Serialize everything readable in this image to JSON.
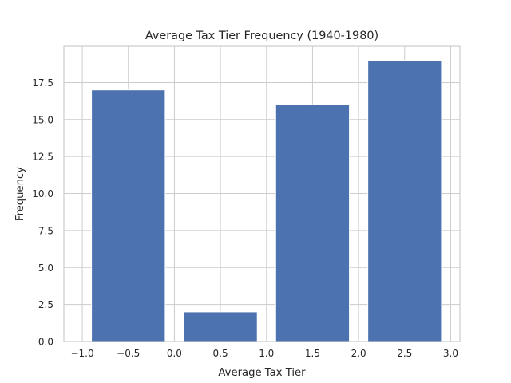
{
  "chart_data": {
    "type": "bar",
    "title": "Average Tax Tier Frequency (1940-1980)",
    "xlabel": "Average Tax Tier",
    "ylabel": "Frequency",
    "bars": [
      {
        "x": -0.5,
        "value": 17
      },
      {
        "x": 0.5,
        "value": 2
      },
      {
        "x": 1.5,
        "value": 16
      },
      {
        "x": 2.5,
        "value": 19
      }
    ],
    "bar_width": 0.8,
    "xlim": [
      -1.2,
      3.1
    ],
    "ylim": [
      0,
      19.95
    ],
    "xticks": [
      -1.0,
      -0.5,
      0.0,
      0.5,
      1.0,
      1.5,
      2.0,
      2.5,
      3.0
    ],
    "xtick_labels": [
      "−1.0",
      "−0.5",
      "0.0",
      "0.5",
      "1.0",
      "1.5",
      "2.0",
      "2.5",
      "3.0"
    ],
    "yticks": [
      0,
      2.5,
      5,
      7.5,
      10,
      12.5,
      15,
      17.5
    ],
    "ytick_labels": [
      "0.0",
      "2.5",
      "5.0",
      "7.5",
      "10.0",
      "12.5",
      "15.0",
      "17.5"
    ],
    "grid": true,
    "bar_color": "#4c72b0"
  }
}
